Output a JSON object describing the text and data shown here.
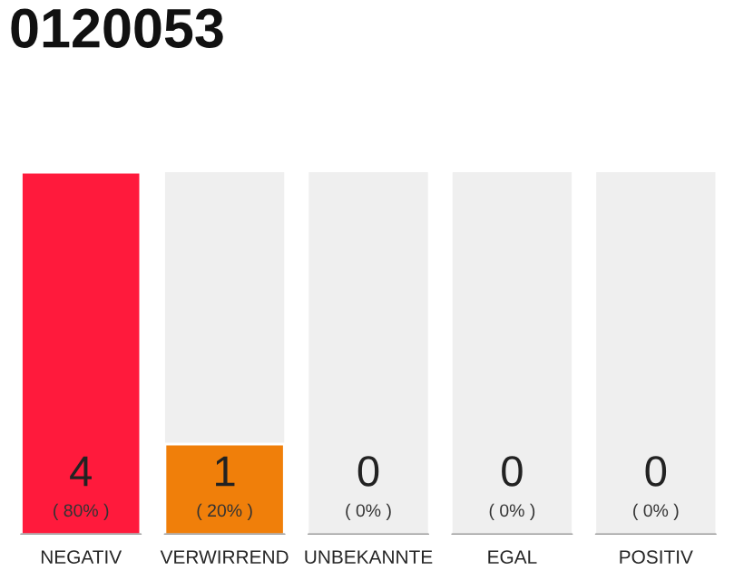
{
  "chart_data": {
    "type": "bar",
    "title": "0120053",
    "categories": [
      "NEGATIV",
      "VERWIRREND",
      "UNBEKANNTE",
      "EGAL",
      "POSITIV"
    ],
    "values": [
      4,
      1,
      0,
      0,
      0
    ],
    "colors": [
      "#ff1a3c",
      "#f07f0a",
      null,
      null,
      null
    ],
    "ylim": [
      0,
      4
    ],
    "data_labels": true,
    "grid": false,
    "legend": false,
    "tick_labels": "x",
    "annotations": [
      {
        "text": "( 80% )",
        "x": "NEGATIV",
        "y": 0
      },
      {
        "text": "( 20% )",
        "x": "VERWIRREND",
        "y": 0
      },
      {
        "text": "( 0% )",
        "x": "UNBEKANNTE",
        "y": 0
      },
      {
        "text": "( 0% )",
        "x": "EGAL",
        "y": 0
      },
      {
        "text": "( 0% )",
        "x": "POSITIV",
        "y": 0
      }
    ]
  }
}
